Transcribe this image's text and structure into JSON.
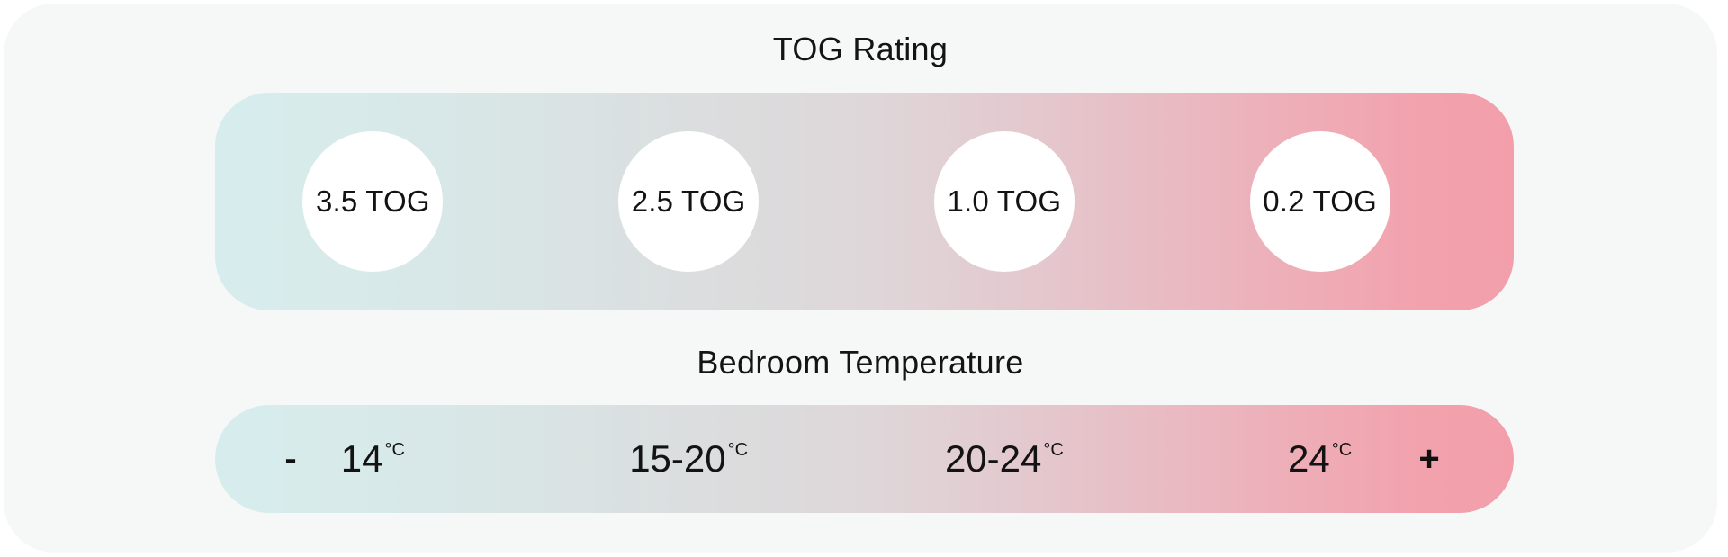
{
  "page": {
    "background": "#ffffff",
    "card_background": "#f6f7f7"
  },
  "colors": {
    "gradient_cold": "#d7eded",
    "gradient_middle": "#ded7d9",
    "gradient_warm": "#f29fab",
    "circle_background": "#ffffff",
    "text": "#141414"
  },
  "tog_section": {
    "title": "TOG Rating",
    "items": [
      {
        "label": "3.5 TOG"
      },
      {
        "label": "2.5 TOG"
      },
      {
        "label": "1.0 TOG"
      },
      {
        "label": "0.2 TOG"
      }
    ]
  },
  "temperature_section": {
    "title": "Bedroom Temperature",
    "decrease_label": "-",
    "increase_label": "+",
    "items": [
      {
        "value": "14",
        "unit": "°C"
      },
      {
        "value": "15-20",
        "unit": "°C"
      },
      {
        "value": "20-24",
        "unit": "°C"
      },
      {
        "value": "24",
        "unit": "°C"
      }
    ]
  }
}
